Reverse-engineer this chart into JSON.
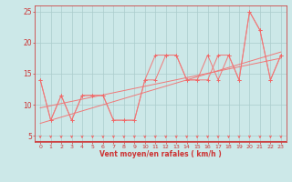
{
  "xlabel": "Vent moyen/en rafales ( km/h )",
  "bg_color": "#cce8e8",
  "grid_color": "#aacccc",
  "line_color": "#f07878",
  "marker_color": "#f06868",
  "spine_color": "#cc4444",
  "tick_color": "#cc3333",
  "xlim": [
    -0.5,
    23.5
  ],
  "ylim": [
    4,
    26
  ],
  "yticks": [
    5,
    10,
    15,
    20,
    25
  ],
  "xticks": [
    0,
    1,
    2,
    3,
    4,
    5,
    6,
    7,
    8,
    9,
    10,
    11,
    12,
    13,
    14,
    15,
    16,
    17,
    18,
    19,
    20,
    21,
    22,
    23
  ],
  "series": {
    "line1": [
      14,
      7.5,
      11.5,
      7.5,
      11.5,
      11.5,
      11.5,
      7.5,
      7.5,
      7.5,
      14,
      14,
      18,
      18,
      14,
      14,
      18,
      14,
      18,
      14,
      25,
      22,
      14,
      18
    ],
    "line2": [
      14,
      7.5,
      11.5,
      7.5,
      11.5,
      11.5,
      11.5,
      7.5,
      7.5,
      7.5,
      14,
      18,
      18,
      18,
      14,
      14,
      14,
      18,
      18,
      14,
      25,
      22,
      14,
      18
    ],
    "trend1_x": [
      0,
      23
    ],
    "trend1_y": [
      7.0,
      18.5
    ],
    "trend2_x": [
      0,
      23
    ],
    "trend2_y": [
      9.5,
      17.5
    ]
  }
}
